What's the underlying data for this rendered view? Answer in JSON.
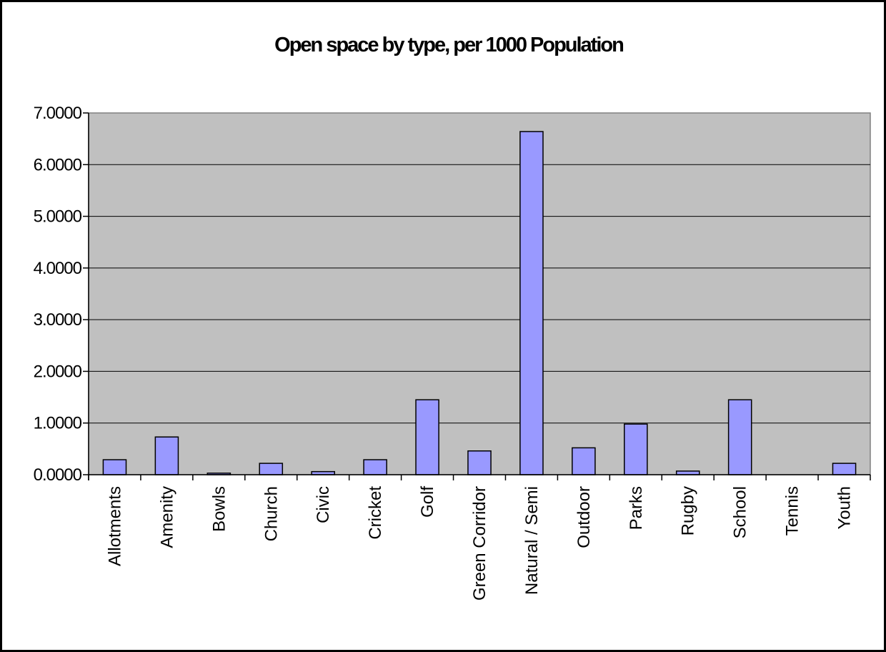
{
  "chart_data": {
    "type": "bar",
    "title": "Open space by type, per 1000 Population",
    "xlabel": "",
    "ylabel": "",
    "categories": [
      "Allotments",
      "Amenity",
      "Bowls",
      "Church",
      "Civic",
      "Cricket",
      "Golf",
      "Green Corridor",
      "Natural / Semi",
      "Outdoor",
      "Parks",
      "Rugby",
      "School",
      "Tennis",
      "Youth"
    ],
    "values": [
      0.29,
      0.73,
      0.03,
      0.22,
      0.06,
      0.29,
      1.45,
      0.46,
      6.64,
      0.52,
      0.98,
      0.07,
      1.45,
      0.0,
      0.22
    ],
    "ylim": [
      0,
      7
    ],
    "y_ticks": [
      "0.0000",
      "1.0000",
      "2.0000",
      "3.0000",
      "4.0000",
      "5.0000",
      "6.0000",
      "7.0000"
    ],
    "grid": true,
    "legend": "none",
    "colors": {
      "bar_fill": "#9999ff",
      "bar_stroke": "#000000",
      "plot_bg": "#c0c0c0",
      "frame": "#000000"
    }
  }
}
